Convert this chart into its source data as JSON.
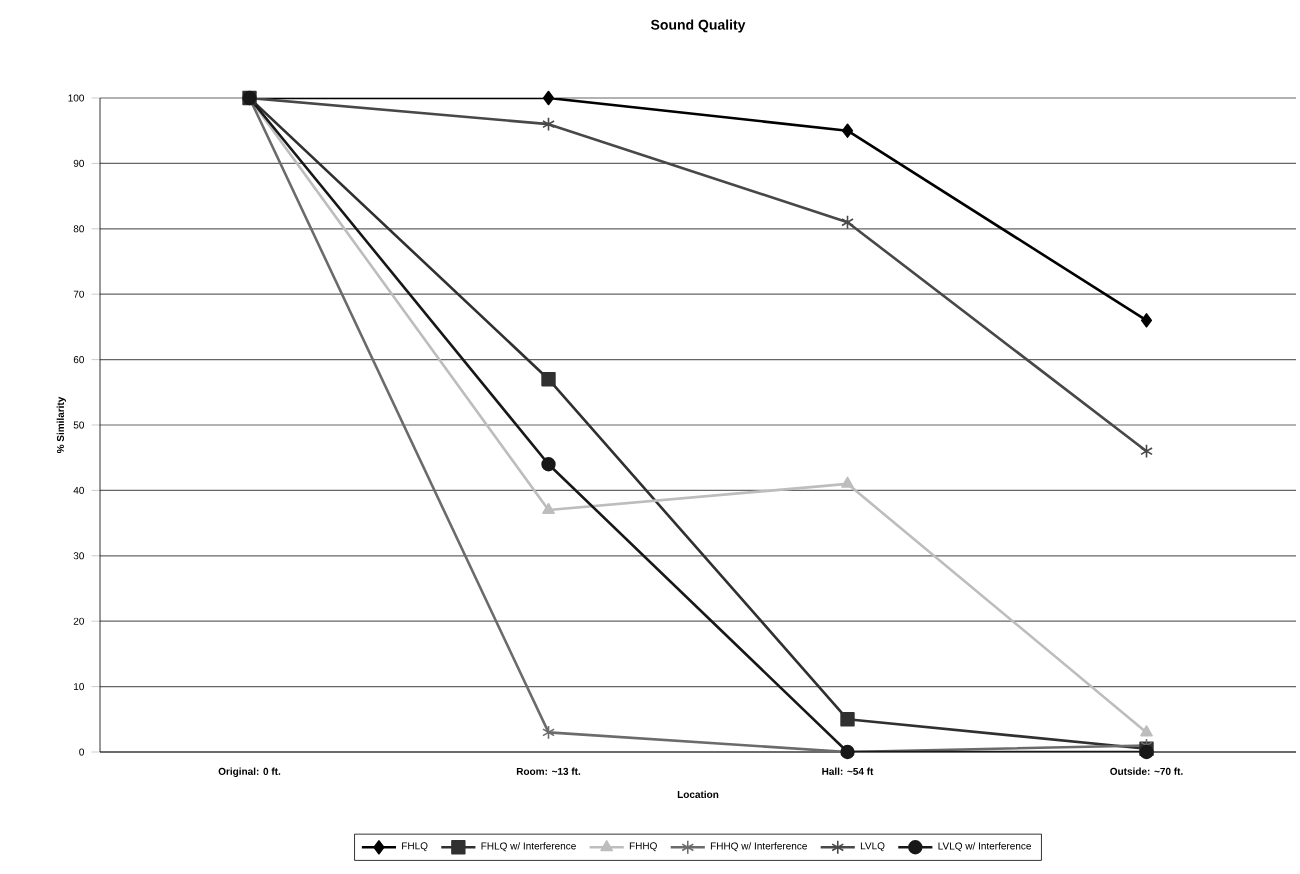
{
  "chart_data": {
    "type": "line",
    "title": "Sound Quality",
    "xlabel": "Location",
    "ylabel": "% Similarity",
    "categories": [
      "Original: 0 ft.",
      "Room: ~13 ft.",
      "Hall: ~54 ft",
      "Outside: ~70 ft."
    ],
    "ylim": [
      0,
      100
    ],
    "yticks": [
      0,
      10,
      20,
      30,
      40,
      50,
      60,
      70,
      80,
      90,
      100
    ],
    "grid": "y",
    "legend": "bottom",
    "series": [
      {
        "name": "FHLQ",
        "color": "#000000",
        "marker": "diamond",
        "values": [
          100,
          100,
          95,
          66
        ]
      },
      {
        "name": "FHLQ w/ Interference",
        "color": "#303030",
        "marker": "square",
        "values": [
          100,
          57,
          5,
          0.5
        ]
      },
      {
        "name": "FHHQ",
        "color": "#bdbdbd",
        "marker": "triangle",
        "values": [
          100,
          37,
          41,
          3
        ]
      },
      {
        "name": "FHHQ w/ Interference",
        "color": "#6b6b6b",
        "marker": "cross",
        "values": [
          100,
          3,
          0,
          1
        ]
      },
      {
        "name": "LVLQ",
        "color": "#484848",
        "marker": "cross",
        "values": [
          100,
          96,
          81,
          46
        ]
      },
      {
        "name": "LVLQ w/ Interference",
        "color": "#181818",
        "marker": "circle",
        "values": [
          100,
          44,
          0,
          0
        ]
      }
    ]
  }
}
